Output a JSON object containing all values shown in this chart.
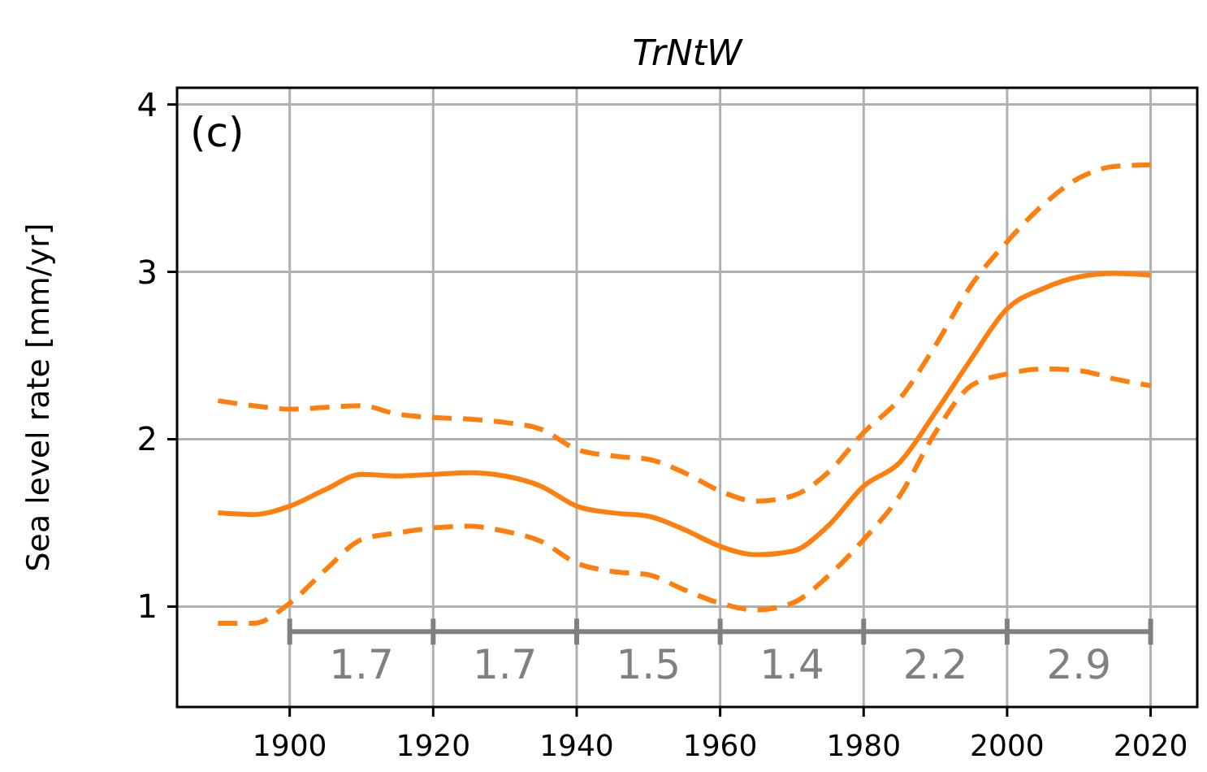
{
  "chart_data": {
    "type": "line",
    "title": "TrNtW",
    "ylabel": "Sea level rate [mm/yr]",
    "x": [
      1890,
      1895,
      1900,
      1905,
      1910,
      1915,
      1920,
      1925,
      1930,
      1935,
      1940,
      1945,
      1950,
      1955,
      1960,
      1965,
      1970,
      1975,
      1980,
      1985,
      1990,
      1995,
      2000,
      2005,
      2010,
      2015,
      2020
    ],
    "series": [
      {
        "color": "#ff7f0e",
        "line_style": "solid",
        "values": [
          1.56,
          1.55,
          1.6,
          1.7,
          1.79,
          1.78,
          1.79,
          1.8,
          1.78,
          1.72,
          1.6,
          1.56,
          1.54,
          1.46,
          1.36,
          1.31,
          1.33,
          1.48,
          1.72,
          1.86,
          2.16,
          2.48,
          2.78,
          2.9,
          2.97,
          2.99,
          2.98
        ]
      },
      {
        "color": "#ff7f0e",
        "line_style": "dashed",
        "values": [
          2.23,
          2.2,
          2.18,
          2.19,
          2.2,
          2.15,
          2.13,
          2.12,
          2.1,
          2.06,
          1.94,
          1.9,
          1.88,
          1.8,
          1.69,
          1.63,
          1.66,
          1.8,
          2.04,
          2.24,
          2.56,
          2.92,
          3.18,
          3.4,
          3.56,
          3.63,
          3.64
        ]
      },
      {
        "color": "#ff7f0e",
        "line_style": "dashed",
        "values": [
          0.9,
          0.9,
          1.02,
          1.22,
          1.4,
          1.44,
          1.47,
          1.48,
          1.45,
          1.39,
          1.26,
          1.21,
          1.19,
          1.1,
          1.02,
          0.98,
          1.02,
          1.18,
          1.4,
          1.66,
          2.04,
          2.32,
          2.39,
          2.42,
          2.41,
          2.36,
          2.32
        ]
      },
      {
        "color": "#808080",
        "line_style": "solid",
        "x": [
          1900,
          1920,
          1940,
          1960,
          1980,
          2000,
          2020
        ],
        "values": [
          0.85,
          0.85,
          0.85,
          0.85,
          0.85,
          0.85,
          0.85
        ]
      }
    ],
    "xlim": [
      1884.3,
      2026.5
    ],
    "xticks": [
      1900,
      1920,
      1940,
      1960,
      1980,
      2000,
      2020
    ],
    "ylim": [
      0.4,
      4.1
    ],
    "yticks": [
      1,
      2,
      3,
      4
    ],
    "grid": true,
    "annotations": [
      "(c)",
      "1.7",
      "1.7",
      "1.5",
      "1.4",
      "2.2",
      "2.9"
    ]
  }
}
